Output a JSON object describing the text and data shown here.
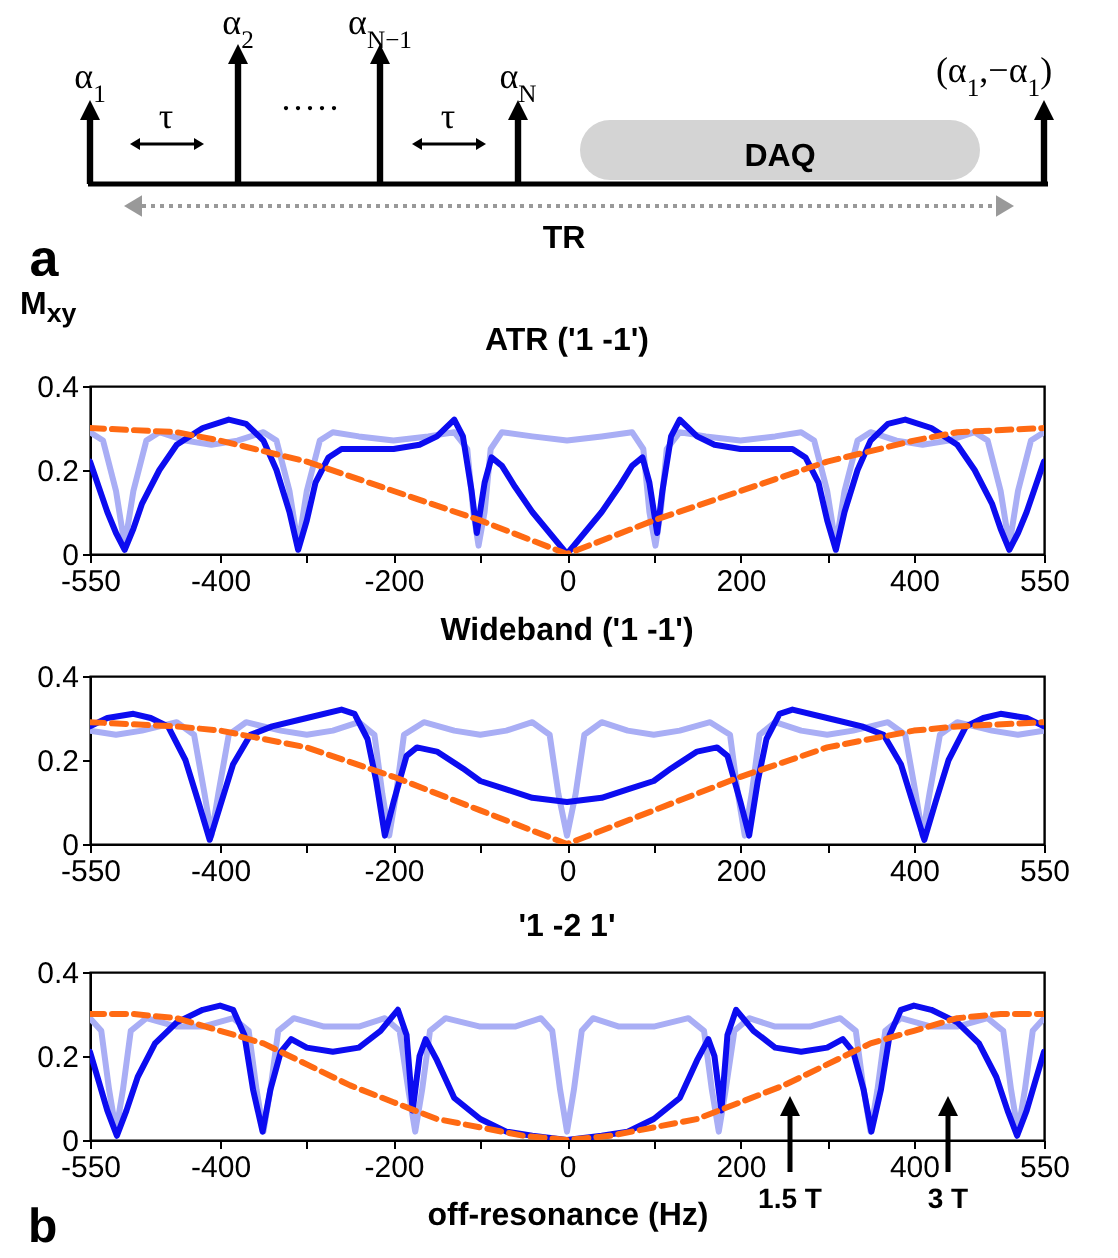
{
  "chart_data": [
    {
      "type": "other",
      "annotations": [
        "α$_{1}$",
        "α$_{2}$",
        "·····",
        "α$_{N−1}$",
        "α$_{N}$",
        "(α$_{1}$,−α$_{1}$)",
        "τ",
        "τ",
        "DAQ",
        "TR",
        "a"
      ]
    },
    {
      "type": "line",
      "title": "ATR ('1 -1')",
      "ylabel": "M$_{xy}$",
      "xlim": [
        -550,
        550
      ],
      "xticks": [
        -550,
        -400,
        {
          "value": -300,
          "label": null
        },
        -200,
        {
          "value": -100,
          "label": null
        },
        0,
        {
          "value": 100,
          "label": null
        },
        200,
        {
          "value": 300,
          "label": null
        },
        400,
        550
      ],
      "ylim": [
        0,
        0.4
      ],
      "yticks": [
        0,
        0.2,
        0.4
      ],
      "series": [
        {
          "color": "#a9aef5",
          "x": [
            -550,
            -535,
            -520,
            -510,
            -500,
            -485,
            -470,
            -440,
            -410,
            -380,
            -350,
            -335,
            -320,
            -310,
            -300,
            -285,
            -270,
            -240,
            -200,
            -160,
            -130,
            -115,
            -108,
            -102,
            -95,
            -88,
            -75,
            -40,
            0,
            40,
            75,
            88,
            95,
            102,
            108,
            115,
            130,
            160,
            200,
            240,
            270,
            285,
            300,
            310,
            320,
            335,
            350,
            380,
            410,
            440,
            470,
            485,
            500,
            510,
            520,
            535,
            550
          ],
          "values": [
            0.29,
            0.27,
            0.15,
            0.02,
            0.15,
            0.27,
            0.29,
            0.27,
            0.26,
            0.27,
            0.29,
            0.27,
            0.15,
            0.02,
            0.15,
            0.27,
            0.29,
            0.28,
            0.27,
            0.28,
            0.29,
            0.25,
            0.1,
            0.02,
            0.1,
            0.25,
            0.29,
            0.28,
            0.27,
            0.28,
            0.29,
            0.25,
            0.1,
            0.02,
            0.1,
            0.25,
            0.29,
            0.28,
            0.27,
            0.28,
            0.29,
            0.27,
            0.15,
            0.02,
            0.15,
            0.27,
            0.29,
            0.27,
            0.26,
            0.27,
            0.29,
            0.27,
            0.15,
            0.02,
            0.15,
            0.27,
            0.29
          ]
        },
        {
          "color": "#0c0cf0",
          "x": [
            -550,
            -540,
            -530,
            -520,
            -510,
            -500,
            -490,
            -470,
            -450,
            -420,
            -390,
            -370,
            -350,
            -335,
            -320,
            -310,
            -300,
            -290,
            -275,
            -260,
            -230,
            -200,
            -170,
            -150,
            -130,
            -120,
            -110,
            -104,
            -95,
            -87,
            -75,
            -60,
            -40,
            -20,
            0,
            20,
            40,
            60,
            75,
            87,
            95,
            104,
            110,
            120,
            130,
            150,
            170,
            200,
            230,
            260,
            275,
            290,
            300,
            310,
            320,
            335,
            350,
            370,
            390,
            420,
            450,
            470,
            490,
            500,
            510,
            520,
            530,
            540,
            550
          ],
          "values": [
            0.22,
            0.16,
            0.1,
            0.05,
            0.01,
            0.06,
            0.12,
            0.2,
            0.26,
            0.3,
            0.32,
            0.31,
            0.27,
            0.2,
            0.1,
            0.01,
            0.08,
            0.17,
            0.23,
            0.25,
            0.25,
            0.25,
            0.26,
            0.28,
            0.32,
            0.28,
            0.15,
            0.05,
            0.17,
            0.23,
            0.21,
            0.16,
            0.1,
            0.05,
            0,
            0.05,
            0.1,
            0.16,
            0.21,
            0.23,
            0.17,
            0.05,
            0.15,
            0.28,
            0.32,
            0.28,
            0.26,
            0.25,
            0.25,
            0.25,
            0.23,
            0.17,
            0.08,
            0.01,
            0.1,
            0.2,
            0.27,
            0.31,
            0.32,
            0.3,
            0.26,
            0.2,
            0.12,
            0.06,
            0.01,
            0.05,
            0.1,
            0.16,
            0.22
          ]
        },
        {
          "color": "#ff6a13",
          "line_style": "dashed",
          "x": [
            -550,
            -450,
            -400,
            -300,
            -200,
            -100,
            0,
            100,
            200,
            300,
            400,
            450,
            550
          ],
          "values": [
            0.3,
            0.29,
            0.27,
            0.22,
            0.15,
            0.08,
            0,
            0.08,
            0.15,
            0.22,
            0.27,
            0.29,
            0.3
          ]
        }
      ]
    },
    {
      "type": "line",
      "title": "Wideband ('1 -1')",
      "xlim": [
        -550,
        550
      ],
      "xticks": [
        -550,
        -400,
        {
          "value": -300,
          "label": null
        },
        -200,
        {
          "value": -100,
          "label": null
        },
        0,
        {
          "value": 100,
          "label": null
        },
        200,
        {
          "value": 300,
          "label": null
        },
        400,
        550
      ],
      "ylim": [
        0,
        0.4
      ],
      "yticks": [
        0,
        0.2,
        0.4
      ],
      "series": [
        {
          "color": "#a9aef5",
          "x": [
            -550,
            -520,
            -490,
            -450,
            -430,
            -418,
            -410,
            -402,
            -390,
            -370,
            -330,
            -300,
            -270,
            -240,
            -222,
            -213,
            -205,
            -197,
            -188,
            -165,
            -130,
            -100,
            -70,
            -40,
            -20,
            -10,
            0,
            10,
            20,
            40,
            70,
            100,
            130,
            165,
            188,
            197,
            205,
            213,
            222,
            240,
            270,
            300,
            330,
            370,
            390,
            402,
            410,
            418,
            430,
            450,
            490,
            520,
            550
          ],
          "values": [
            0.27,
            0.26,
            0.27,
            0.29,
            0.26,
            0.12,
            0.02,
            0.12,
            0.26,
            0.29,
            0.27,
            0.26,
            0.27,
            0.29,
            0.26,
            0.12,
            0.02,
            0.12,
            0.26,
            0.29,
            0.27,
            0.26,
            0.27,
            0.29,
            0.26,
            0.12,
            0.02,
            0.12,
            0.26,
            0.29,
            0.27,
            0.26,
            0.27,
            0.29,
            0.26,
            0.12,
            0.02,
            0.12,
            0.26,
            0.29,
            0.27,
            0.26,
            0.27,
            0.29,
            0.26,
            0.12,
            0.02,
            0.12,
            0.26,
            0.29,
            0.27,
            0.26,
            0.27
          ]
        },
        {
          "color": "#0c0cf0",
          "x": [
            -550,
            -530,
            -500,
            -480,
            -460,
            -440,
            -425,
            -412,
            -400,
            -385,
            -365,
            -340,
            -300,
            -260,
            -245,
            -230,
            -220,
            -210,
            -200,
            -185,
            -173,
            -150,
            -120,
            -100,
            -70,
            -40,
            0,
            40,
            70,
            100,
            120,
            150,
            173,
            185,
            200,
            210,
            220,
            230,
            245,
            260,
            300,
            340,
            365,
            385,
            400,
            412,
            425,
            440,
            460,
            480,
            500,
            530,
            550
          ],
          "values": [
            0.28,
            0.3,
            0.31,
            0.3,
            0.28,
            0.2,
            0.1,
            0.01,
            0.09,
            0.19,
            0.26,
            0.28,
            0.3,
            0.32,
            0.31,
            0.25,
            0.15,
            0.02,
            0.1,
            0.21,
            0.23,
            0.22,
            0.18,
            0.15,
            0.13,
            0.11,
            0.1,
            0.11,
            0.13,
            0.15,
            0.18,
            0.22,
            0.23,
            0.21,
            0.1,
            0.02,
            0.15,
            0.25,
            0.31,
            0.32,
            0.3,
            0.28,
            0.26,
            0.19,
            0.09,
            0.01,
            0.1,
            0.2,
            0.28,
            0.3,
            0.31,
            0.3,
            0.28
          ]
        },
        {
          "color": "#ff6a13",
          "line_style": "dashed",
          "x": [
            -550,
            -450,
            -400,
            -300,
            -200,
            -100,
            0,
            100,
            200,
            300,
            400,
            450,
            550
          ],
          "values": [
            0.29,
            0.28,
            0.27,
            0.23,
            0.16,
            0.08,
            0,
            0.08,
            0.16,
            0.23,
            0.27,
            0.28,
            0.29
          ]
        }
      ]
    },
    {
      "type": "line",
      "title": "'1 -2 1'",
      "xlabel": "off-resonance (Hz)",
      "xlim": [
        -550,
        550
      ],
      "xticks": [
        -550,
        -400,
        {
          "value": -300,
          "label": null
        },
        -200,
        {
          "value": -100,
          "label": null
        },
        0,
        {
          "value": 100,
          "label": null
        },
        200,
        {
          "value": 300,
          "label": null
        },
        400,
        550
      ],
      "ylim": [
        0,
        0.4
      ],
      "yticks": [
        0,
        0.2,
        0.4
      ],
      "annotations": [
        "1.5 T",
        "3 T",
        "b"
      ],
      "series": [
        {
          "color": "#a9aef5",
          "x": [
            -550,
            -537,
            -528,
            -520,
            -512,
            -503,
            -485,
            -450,
            -420,
            -385,
            -367,
            -358,
            -350,
            -342,
            -333,
            -315,
            -280,
            -240,
            -210,
            -193,
            -183,
            -175,
            -167,
            -158,
            -140,
            -100,
            -60,
            -30,
            -17,
            -8,
            0,
            8,
            17,
            30,
            60,
            100,
            140,
            158,
            167,
            175,
            183,
            193,
            210,
            240,
            280,
            315,
            333,
            342,
            350,
            358,
            367,
            385,
            420,
            450,
            485,
            503,
            512,
            520,
            528,
            537,
            550
          ],
          "values": [
            0.29,
            0.26,
            0.12,
            0.02,
            0.12,
            0.26,
            0.29,
            0.27,
            0.27,
            0.29,
            0.26,
            0.12,
            0.02,
            0.12,
            0.26,
            0.29,
            0.27,
            0.27,
            0.29,
            0.26,
            0.12,
            0.02,
            0.12,
            0.26,
            0.29,
            0.27,
            0.27,
            0.29,
            0.26,
            0.12,
            0.02,
            0.12,
            0.26,
            0.29,
            0.27,
            0.27,
            0.29,
            0.26,
            0.12,
            0.02,
            0.12,
            0.26,
            0.29,
            0.27,
            0.27,
            0.29,
            0.26,
            0.12,
            0.02,
            0.12,
            0.26,
            0.29,
            0.27,
            0.27,
            0.29,
            0.26,
            0.12,
            0.02,
            0.12,
            0.26,
            0.29
          ]
        },
        {
          "color": "#0c0cf0",
          "x": [
            -550,
            -540,
            -530,
            -519,
            -508,
            -495,
            -475,
            -450,
            -420,
            -400,
            -385,
            -372,
            -362,
            -351,
            -342,
            -330,
            -318,
            -300,
            -270,
            -240,
            -215,
            -195,
            -185,
            -178,
            -170,
            -163,
            -150,
            -130,
            -100,
            -70,
            -40,
            0,
            40,
            70,
            100,
            130,
            150,
            163,
            170,
            178,
            185,
            195,
            215,
            240,
            270,
            300,
            318,
            330,
            342,
            351,
            362,
            372,
            385,
            400,
            420,
            450,
            475,
            495,
            508,
            519,
            530,
            540,
            550
          ],
          "values": [
            0.21,
            0.14,
            0.07,
            0.01,
            0.07,
            0.15,
            0.23,
            0.28,
            0.31,
            0.32,
            0.31,
            0.25,
            0.12,
            0.02,
            0.12,
            0.21,
            0.24,
            0.22,
            0.21,
            0.22,
            0.26,
            0.31,
            0.25,
            0.07,
            0.2,
            0.24,
            0.19,
            0.1,
            0.05,
            0.02,
            0.01,
            0,
            0.01,
            0.02,
            0.05,
            0.1,
            0.19,
            0.24,
            0.2,
            0.07,
            0.25,
            0.31,
            0.26,
            0.22,
            0.21,
            0.22,
            0.24,
            0.21,
            0.12,
            0.02,
            0.12,
            0.25,
            0.31,
            0.32,
            0.31,
            0.28,
            0.23,
            0.15,
            0.07,
            0.01,
            0.07,
            0.14,
            0.21
          ]
        },
        {
          "color": "#ff6a13",
          "line_style": "dashed",
          "x": [
            -550,
            -500,
            -450,
            -400,
            -350,
            -300,
            -250,
            -200,
            -150,
            -100,
            -50,
            0,
            50,
            100,
            150,
            200,
            250,
            300,
            350,
            400,
            450,
            500,
            550
          ],
          "values": [
            0.3,
            0.3,
            0.29,
            0.26,
            0.23,
            0.18,
            0.13,
            0.09,
            0.05,
            0.03,
            0.01,
            0,
            0.01,
            0.03,
            0.05,
            0.09,
            0.13,
            0.18,
            0.23,
            0.26,
            0.29,
            0.3,
            0.3
          ]
        }
      ]
    }
  ]
}
